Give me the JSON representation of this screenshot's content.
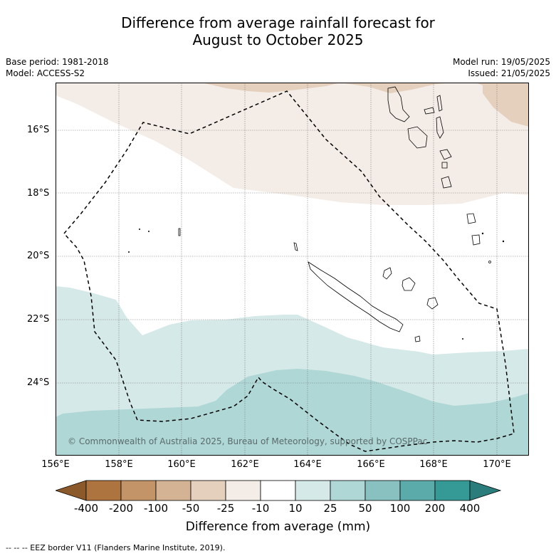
{
  "title_line1": "Difference from average rainfall forecast for",
  "title_line2": "August to October 2025",
  "base_period": "Base period: 1981-2018",
  "model": "Model: ACCESS-S2",
  "model_run": "Model run: 19/05/2025",
  "issued": "Issued: 21/05/2025",
  "lat_labels": [
    "16°S",
    "18°S",
    "20°S",
    "22°S",
    "24°S"
  ],
  "lon_labels": [
    "156°E",
    "158°E",
    "160°E",
    "162°E",
    "164°E",
    "166°E",
    "168°E",
    "170°E"
  ],
  "copyright": "© Commonwealth of Australia 2025, Bureau of Meteorology, supported by COSPPac",
  "colorbar": {
    "ticks": [
      "-400",
      "-200",
      "-100",
      "-50",
      "-25",
      "-10",
      "10",
      "25",
      "50",
      "100",
      "200",
      "400"
    ],
    "colors": [
      "#8c5a2a",
      "#ad7440",
      "#c29468",
      "#d3b393",
      "#e4d0bd",
      "#f4ede7",
      "#ffffff",
      "#d5e9e8",
      "#afd7d6",
      "#89c1c0",
      "#5aabaa",
      "#359996",
      "#2a7d7a"
    ],
    "title": "Difference from average (mm)"
  },
  "legend_footer": "--  --  -- EEZ border V11 (Flanders Marine Institute, 2019)."
}
